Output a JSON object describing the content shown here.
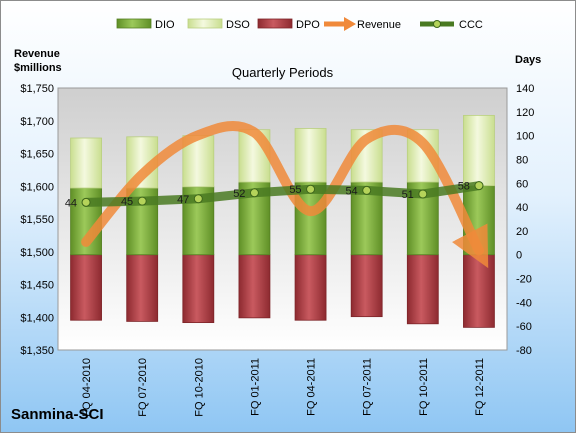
{
  "company": "Sanmina-SCI",
  "chart_data": {
    "type": "bar",
    "title": "Quarterly Periods",
    "categories": [
      "FQ 04-2010",
      "FQ 07-2010",
      "FQ 10-2010",
      "FQ 01-2011",
      "FQ 04-2011",
      "FQ 07-2011",
      "FQ 10-2011",
      "FQ 12-2011"
    ],
    "left_axis": {
      "label_lines": [
        "Revenue",
        "$millions"
      ],
      "ylim": [
        1350,
        1750
      ],
      "ticks": [
        1350,
        1400,
        1450,
        1500,
        1550,
        1600,
        1650,
        1700,
        1750
      ],
      "tick_labels": [
        "$1,350",
        "$1,400",
        "$1,450",
        "$1,500",
        "$1,550",
        "$1,600",
        "$1,650",
        "$1,700",
        "$1,750"
      ]
    },
    "right_axis": {
      "label": "Days",
      "ylim": [
        -80,
        140
      ],
      "ticks": [
        -80,
        -60,
        -40,
        -20,
        0,
        20,
        40,
        60,
        80,
        100,
        120,
        140
      ],
      "tick_labels": [
        "-80",
        "-60",
        "-40",
        "-20",
        "0",
        "20",
        "40",
        "60",
        "80",
        "100",
        "120",
        "140"
      ]
    },
    "series": [
      {
        "name": "DIO",
        "kind": "stacked-bar",
        "axis": "right",
        "color": "#7eab3a",
        "values": [
          56,
          56,
          57,
          61,
          61,
          61,
          61,
          58
        ]
      },
      {
        "name": "DSO",
        "kind": "stacked-bar",
        "axis": "right",
        "color": "#e6f1c1",
        "values": [
          42,
          43,
          43,
          44,
          45,
          44,
          44,
          59
        ]
      },
      {
        "name": "DPO",
        "kind": "bar-negative",
        "axis": "right",
        "color": "#b8454c",
        "values": [
          -55,
          -56,
          -57,
          -53,
          -55,
          -52,
          -58,
          -61
        ]
      },
      {
        "name": "Revenue",
        "kind": "arrow-line",
        "axis": "left",
        "color": "#f0893a",
        "values": [
          1515,
          1618,
          1678,
          1682,
          1562,
          1672,
          1666,
          1502
        ]
      },
      {
        "name": "CCC",
        "kind": "line",
        "axis": "right",
        "color": "#4a7a22",
        "values": [
          44,
          45,
          47,
          52,
          55,
          54,
          51,
          58
        ]
      }
    ],
    "legend_position": "top",
    "grid": false
  }
}
